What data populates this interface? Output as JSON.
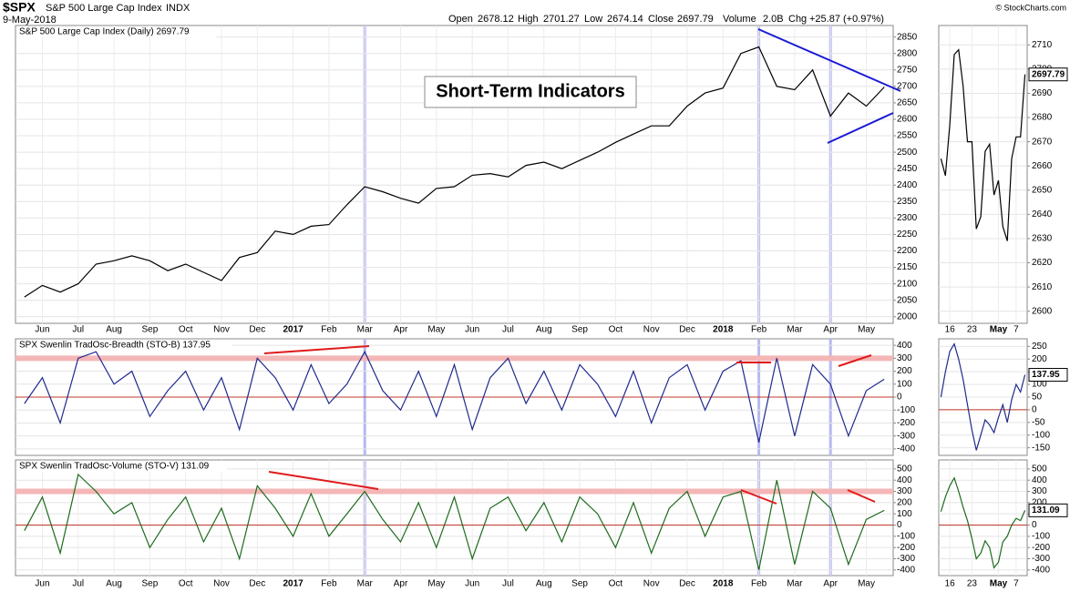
{
  "header": {
    "symbol": "$SPX",
    "name": "S&P 500 Large Cap Index",
    "exchange": "INDX",
    "date": "9-May-2018",
    "open_label": "Open",
    "open": 2678.12,
    "high_label": "High",
    "high": 2701.27,
    "low_label": "Low",
    "low": 2674.14,
    "close_label": "Close",
    "close": 2697.79,
    "volume_label": "Volume",
    "volume": "2.0B",
    "chg_label": "Chg",
    "chg": "+25.87 (+0.97%)",
    "credit": "© StockCharts.com",
    "annotation": "Short-Term Indicators"
  },
  "chart_data": [
    {
      "type": "line",
      "title": "S&P 500 Large Cap Index (Daily) 2697.79",
      "categories": [
        null,
        "Jun",
        null,
        "Jul",
        null,
        "Aug",
        null,
        "Sep",
        null,
        "Oct",
        null,
        "Nov",
        null,
        "Dec",
        null,
        "2017",
        null,
        "Feb",
        null,
        "Mar",
        null,
        "Apr",
        null,
        "May",
        null,
        "Jun",
        null,
        "Jul",
        null,
        "Aug",
        null,
        "Sep",
        null,
        "Oct",
        null,
        "Nov",
        null,
        "Dec",
        null,
        "2018",
        null,
        "Feb",
        null,
        "Mar",
        null,
        "Apr",
        null,
        "May",
        null
      ],
      "values": [
        2060,
        2095,
        2075,
        2100,
        2160,
        2170,
        2185,
        2170,
        2140,
        2160,
        2135,
        2110,
        2180,
        2195,
        2260,
        2250,
        2275,
        2280,
        2340,
        2395,
        2380,
        2360,
        2345,
        2390,
        2395,
        2430,
        2435,
        2425,
        2460,
        2470,
        2450,
        2475,
        2500,
        2530,
        2555,
        2580,
        2580,
        2640,
        2680,
        2695,
        2800,
        2820,
        2700,
        2690,
        2750,
        2610,
        2680,
        2640,
        2697.79
      ],
      "color": "#000000",
      "ylim": [
        1980,
        2885
      ],
      "yticks": [
        2000,
        2050,
        2100,
        2150,
        2200,
        2250,
        2300,
        2350,
        2400,
        2450,
        2500,
        2550,
        2600,
        2650,
        2700,
        2750,
        2800,
        2850
      ],
      "grid": true
    },
    {
      "type": "line",
      "title": "SPX Swenlin TradOsc-Breadth (STO-B) 137.95",
      "values": [
        -50,
        150,
        -200,
        300,
        350,
        100,
        200,
        -150,
        50,
        200,
        -100,
        150,
        -250,
        300,
        150,
        -100,
        250,
        -50,
        100,
        350,
        50,
        -100,
        200,
        -150,
        250,
        -250,
        150,
        300,
        -50,
        200,
        -100,
        250,
        100,
        -150,
        200,
        -200,
        150,
        250,
        -100,
        200,
        280,
        -350,
        300,
        -300,
        250,
        100,
        -300,
        50,
        137.95
      ],
      "color": "#1f2a8c",
      "ylim": [
        -450,
        450
      ],
      "yticks": [
        -400,
        -300,
        -200,
        -100,
        0,
        100,
        200,
        300,
        400
      ],
      "reference_lines": [
        0,
        300
      ],
      "grid": true
    },
    {
      "type": "line",
      "title": "SPX Swenlin TradOsc-Volume (STO-V) 131.09",
      "categories": [
        null,
        "Jun",
        null,
        "Jul",
        null,
        "Aug",
        null,
        "Sep",
        null,
        "Oct",
        null,
        "Nov",
        null,
        "Dec",
        null,
        "2017",
        null,
        "Feb",
        null,
        "Mar",
        null,
        "Apr",
        null,
        "May",
        null,
        "Jun",
        null,
        "Jul",
        null,
        "Aug",
        null,
        "Sep",
        null,
        "Oct",
        null,
        "Nov",
        null,
        "Dec",
        null,
        "2018",
        null,
        "Feb",
        null,
        "Mar",
        null,
        "Apr",
        null,
        "May",
        null
      ],
      "values": [
        -50,
        250,
        -250,
        450,
        300,
        100,
        200,
        -200,
        50,
        250,
        -150,
        150,
        -300,
        350,
        150,
        -100,
        280,
        -100,
        100,
        300,
        50,
        -150,
        200,
        -200,
        250,
        -300,
        150,
        250,
        -50,
        200,
        -150,
        250,
        100,
        -200,
        200,
        -250,
        150,
        300,
        -100,
        250,
        300,
        -400,
        400,
        -350,
        300,
        150,
        -350,
        50,
        131.09
      ],
      "color": "#1e6b1e",
      "ylim": [
        -450,
        580
      ],
      "yticks": [
        -400,
        -300,
        -200,
        -100,
        0,
        100,
        200,
        300,
        400,
        500
      ],
      "reference_lines": [
        0,
        300
      ],
      "grid": true
    },
    {
      "type": "line",
      "categories": [
        null,
        null,
        "16",
        null,
        null,
        null,
        null,
        "23",
        null,
        null,
        null,
        null,
        null,
        "May",
        null,
        null,
        null,
        "7",
        null,
        null
      ],
      "values": [
        2663,
        2656,
        2677,
        2706,
        2708,
        2693,
        2670,
        2670,
        2634,
        2639,
        2666,
        2669,
        2648,
        2654,
        2635,
        2629,
        2663,
        2672,
        2672,
        2697.79
      ],
      "color": "#000000",
      "ylim": [
        2595,
        2718
      ],
      "yticks": [
        2600,
        2610,
        2620,
        2630,
        2640,
        2650,
        2660,
        2670,
        2680,
        2690,
        2700,
        2710
      ],
      "grid": true
    },
    {
      "type": "line",
      "values": [
        50,
        150,
        230,
        260,
        200,
        120,
        20,
        -80,
        -160,
        -100,
        -40,
        -60,
        -90,
        -30,
        20,
        -50,
        40,
        100,
        70,
        137.95
      ],
      "color": "#1f2a8c",
      "ylim": [
        -180,
        280
      ],
      "yticks": [
        -150,
        -100,
        -50,
        0,
        50,
        100,
        150,
        200,
        250
      ],
      "reference_lines": [
        0
      ],
      "grid": true
    },
    {
      "type": "line",
      "categories": [
        null,
        null,
        "16",
        null,
        null,
        null,
        null,
        "23",
        null,
        null,
        null,
        null,
        null,
        "May",
        null,
        null,
        null,
        "7",
        null,
        null
      ],
      "values": [
        120,
        250,
        350,
        420,
        300,
        160,
        40,
        -120,
        -300,
        -250,
        -140,
        -200,
        -380,
        -330,
        -150,
        -100,
        0,
        60,
        40,
        131.09
      ],
      "color": "#1e6b1e",
      "ylim": [
        -450,
        580
      ],
      "yticks": [
        -400,
        -300,
        -200,
        -100,
        0,
        100,
        200,
        300,
        400,
        500
      ],
      "reference_lines": [
        0
      ],
      "grid": true
    }
  ]
}
